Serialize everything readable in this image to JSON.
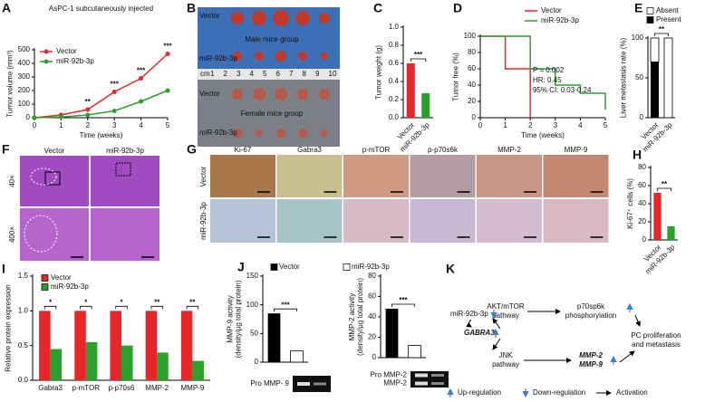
{
  "chart_data": [
    {
      "label": "A",
      "type": "line",
      "title": "AsPC-1 subcutaneously injected",
      "x_label": "Time (weeks)",
      "y_label": "Tumor volume (mm³)",
      "x": [
        0,
        1,
        2,
        3,
        4,
        5
      ],
      "xlim": [
        0,
        5
      ],
      "xticks": [
        0,
        1,
        2,
        3,
        4,
        5
      ],
      "ylim": [
        0,
        500
      ],
      "yticks": [
        0,
        100,
        200,
        300,
        400,
        500
      ],
      "markers": true,
      "legend": "upper left",
      "series": [
        {
          "name": "Vector",
          "color": "#e8262a",
          "values": [
            0,
            20,
            60,
            190,
            290,
            470
          ]
        },
        {
          "name": "miR-92b-3p",
          "color": "#2ca02c",
          "values": [
            0,
            5,
            20,
            50,
            120,
            200
          ]
        }
      ],
      "significance": [
        null,
        null,
        "**",
        "***",
        "***",
        "***"
      ]
    },
    {
      "label": "C",
      "type": "bar",
      "y_label": "Tumor weight (g)",
      "categories": [
        "Vector",
        "miR-92b-3p"
      ],
      "values": [
        0.6,
        0.27
      ],
      "colors": [
        "#e8262a",
        "#2ca02c"
      ],
      "ylim": [
        0,
        1
      ],
      "yticks": [
        {
          "value": 0,
          "label": "0.0"
        },
        0.2,
        0.4,
        0.6,
        0.8,
        {
          "value": 1,
          "label": "1.0"
        }
      ],
      "significance": "***"
    },
    {
      "label": "D",
      "type": "line",
      "x_label": "Time (weeks)",
      "y_label": "Tumor free (%)",
      "xlim": [
        0,
        5
      ],
      "xticks": [
        0,
        1,
        2,
        3,
        4,
        5
      ],
      "ylim": [
        0,
        100
      ],
      "yticks": [
        0,
        20,
        40,
        60,
        80,
        100
      ],
      "legend": "top",
      "series": [
        {
          "name": "Vector",
          "color": "#e8262a",
          "x": [
            0,
            1,
            1,
            2,
            2
          ],
          "values": [
            100,
            100,
            60,
            60,
            0
          ]
        },
        {
          "name": "miR-92b-3p",
          "color": "#2ca02c",
          "x": [
            0,
            2,
            2,
            3,
            3,
            4,
            4,
            5,
            5
          ],
          "values": [
            100,
            100,
            60,
            60,
            40,
            40,
            30,
            30,
            10
          ]
        }
      ],
      "stats": [
        "P = 0.002",
        "HR: 0.45",
        "95% CI: 0.03-0.24"
      ]
    },
    {
      "label": "E",
      "type": "bar",
      "stacked": true,
      "y_label": "Liver metastasis rate (%)",
      "categories": [
        "Vector",
        "miR-92b-3p"
      ],
      "series": [
        {
          "name": "Present",
          "color": "#000000",
          "values": [
            70,
            0
          ]
        },
        {
          "name": "Absent",
          "color": "#ffffff",
          "values": [
            30,
            100
          ]
        }
      ],
      "ylim": [
        0,
        100
      ],
      "yticks": [
        0,
        50,
        100
      ],
      "legend": "top",
      "significance": "**"
    },
    {
      "label": "H",
      "type": "bar",
      "y_label": "Ki-67⁺ cells (%)",
      "categories": [
        "Vector",
        "miR-92b-3p"
      ],
      "values": [
        52,
        15
      ],
      "colors": [
        "#e8262a",
        "#2ca02c"
      ],
      "ylim": [
        0,
        80
      ],
      "yticks": [
        0,
        20,
        40,
        60,
        80
      ],
      "significance": "**"
    },
    {
      "label": "I",
      "type": "bar",
      "y_label": "Relative protein expression",
      "categories": [
        "Gabra3",
        "p-mTOR",
        "p-p70s6",
        "MMP-2",
        "MMP-9"
      ],
      "series": [
        {
          "name": "Vector",
          "color": "#e8262a",
          "values": [
            1,
            1,
            1,
            1,
            1
          ]
        },
        {
          "name": "miR-92b-3p",
          "color": "#2ca02c",
          "values": [
            0.45,
            0.55,
            0.5,
            0.4,
            0.28
          ]
        }
      ],
      "ylim": [
        0,
        1.5
      ],
      "yticks": [
        {
          "value": 0,
          "label": "0.0"
        },
        0.5,
        {
          "value": 1,
          "label": "1.0"
        },
        1.5
      ],
      "legend": "upper left",
      "significance": [
        "*",
        "*",
        "*",
        "**",
        "**"
      ]
    },
    {
      "label": "J",
      "type": "bar",
      "y_label": [
        "MMP-9 activity",
        "(density/µg total protein)"
      ],
      "values": [
        85,
        20
      ],
      "colors": [
        "#000000",
        "#ffffff"
      ],
      "ylim": [
        0,
        150
      ],
      "yticks": [
        0,
        50,
        100,
        150
      ],
      "legend": "top",
      "legend_entries": [
        {
          "name": "Vector",
          "color": "#000000"
        },
        {
          "name": "miR-92b-3p",
          "color": "#ffffff"
        }
      ],
      "significance": "***",
      "gel_labels": [
        "Pro MMP- 9"
      ]
    },
    {
      "type": "bar",
      "y_label": [
        "MMP-2 activity",
        "(density/µg total protein)"
      ],
      "values": [
        48,
        12
      ],
      "colors": [
        "#000000",
        "#ffffff"
      ],
      "ylim": [
        0,
        80
      ],
      "yticks": [
        0,
        20,
        40,
        60,
        80
      ],
      "significance": "***",
      "gel_labels": [
        "Pro MMP-2",
        "MMP-2"
      ]
    }
  ],
  "photo_panels": [
    {
      "label": "B",
      "row_labels": [
        "Vector",
        "miR-92b-3p",
        "Vector",
        "miR-92b-3p"
      ],
      "group_labels": [
        "Male mice group",
        "Female mice group"
      ],
      "ruler": [
        "cm",
        "1",
        "2",
        "3",
        "4",
        "5",
        "6",
        "7",
        "8",
        "9",
        "10"
      ]
    },
    {
      "label": "F",
      "column_labels": [
        "Vector",
        "miR-92b-3p"
      ],
      "row_labels": [
        "40×",
        "400×"
      ]
    },
    {
      "label": "G",
      "column_labels": [
        "Ki-67",
        "Gabra3",
        "p-mTOR",
        "p-p70s6k",
        "MMP-2",
        "MMP-9"
      ],
      "row_labels": [
        "Vector",
        "miR-92b-3p"
      ]
    }
  ],
  "diagram": {
    "label": "K",
    "nodes": [
      [
        "miR-92b-3p"
      ],
      [
        "GABRA3"
      ],
      [
        "AKT/mTOR",
        "pathway"
      ],
      [
        "p70sp6k",
        "phosphorylation"
      ],
      [
        "JNK",
        "pathway"
      ],
      [
        "MMP-2",
        "MMP-9"
      ],
      [
        "PC proliferation",
        "and metastasis"
      ]
    ],
    "legend": [
      "Up-regulation",
      "Down-regulation",
      "Activation"
    ]
  }
}
